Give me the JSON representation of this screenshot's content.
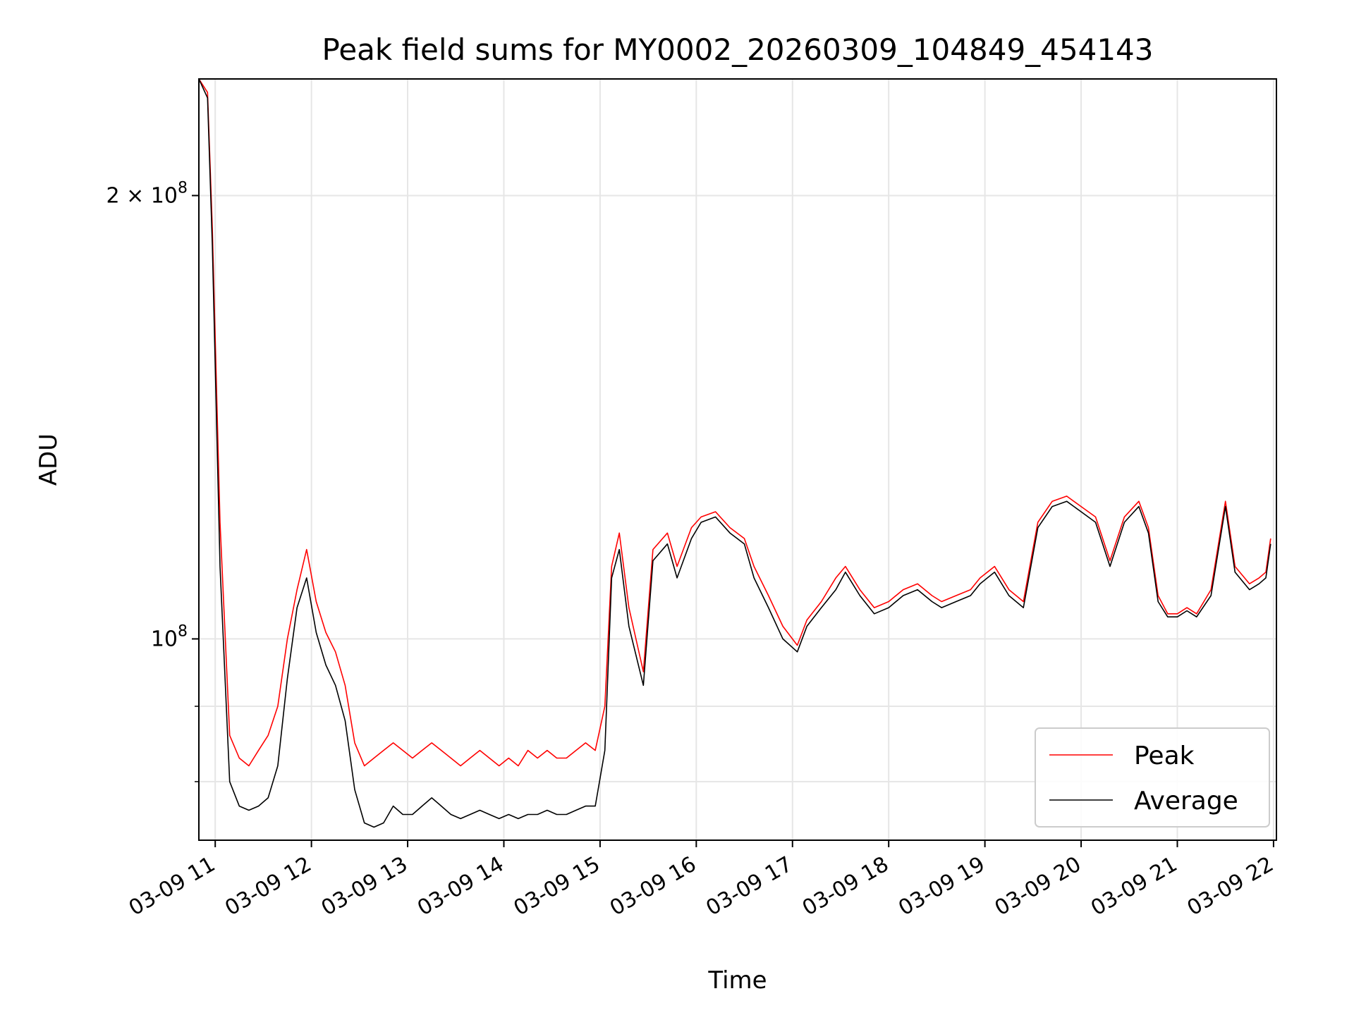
{
  "chart_data": {
    "type": "line",
    "title": "Peak field sums for MY0002_20260309_104849_454143",
    "xlabel": "Time",
    "ylabel": "ADU",
    "y_scale": "log",
    "x_range": [
      "03-09 10:49",
      "03-09 22:02"
    ],
    "ylim": [
      73000000,
      240000000
    ],
    "x_ticks": [
      "03-09 11",
      "03-09 12",
      "03-09 13",
      "03-09 14",
      "03-09 15",
      "03-09 16",
      "03-09 17",
      "03-09 18",
      "03-09 19",
      "03-09 20",
      "03-09 21",
      "03-09 22"
    ],
    "x_tick_hours": [
      11,
      12,
      13,
      14,
      15,
      16,
      17,
      18,
      19,
      20,
      21,
      22
    ],
    "y_major_ticks": [
      {
        "value": 100000000,
        "label_base": "10",
        "label_exp": "8"
      },
      {
        "value": 200000000,
        "label_base": "2 × 10",
        "label_exp": "8"
      }
    ],
    "y_minor_ticks": [
      80000000,
      90000000
    ],
    "grid": true,
    "legend_position": "lower-right",
    "series": [
      {
        "name": "Peak",
        "color": "#ff0000",
        "x_hours": [
          10.83,
          10.92,
          10.97,
          11.05,
          11.15,
          11.25,
          11.35,
          11.45,
          11.55,
          11.65,
          11.75,
          11.85,
          11.95,
          12.05,
          12.15,
          12.25,
          12.35,
          12.45,
          12.55,
          12.65,
          12.75,
          12.85,
          12.95,
          13.05,
          13.15,
          13.25,
          13.35,
          13.45,
          13.55,
          13.65,
          13.75,
          13.85,
          13.95,
          14.05,
          14.15,
          14.25,
          14.35,
          14.45,
          14.55,
          14.65,
          14.75,
          14.85,
          14.95,
          15.05,
          15.12,
          15.2,
          15.3,
          15.45,
          15.55,
          15.7,
          15.8,
          15.95,
          16.05,
          16.2,
          16.35,
          16.5,
          16.6,
          16.75,
          16.9,
          17.05,
          17.15,
          17.3,
          17.45,
          17.55,
          17.7,
          17.85,
          18.0,
          18.15,
          18.3,
          18.45,
          18.55,
          18.7,
          18.85,
          18.95,
          19.1,
          19.25,
          19.4,
          19.55,
          19.7,
          19.85,
          20.0,
          20.15,
          20.3,
          20.45,
          20.6,
          20.7,
          20.8,
          20.9,
          21.0,
          21.1,
          21.2,
          21.35,
          21.5,
          21.6,
          21.75,
          21.85,
          21.92,
          21.97
        ],
        "values": [
          240000000,
          235000000,
          190000000,
          120000000,
          86000000,
          83000000,
          82000000,
          84000000,
          86000000,
          90000000,
          100000000,
          108000000,
          115000000,
          106000000,
          101000000,
          98000000,
          93000000,
          85000000,
          82000000,
          83000000,
          84000000,
          85000000,
          84000000,
          83000000,
          84000000,
          85000000,
          84000000,
          83000000,
          82000000,
          83000000,
          84000000,
          83000000,
          82000000,
          83000000,
          82000000,
          84000000,
          83000000,
          84000000,
          83000000,
          83000000,
          84000000,
          85000000,
          84000000,
          90000000,
          112000000,
          118000000,
          105000000,
          95000000,
          115000000,
          118000000,
          112000000,
          119000000,
          121000000,
          122000000,
          119000000,
          117000000,
          112000000,
          107000000,
          102000000,
          99000000,
          103000000,
          106000000,
          110000000,
          112000000,
          108000000,
          105000000,
          106000000,
          108000000,
          109000000,
          107000000,
          106000000,
          107000000,
          108000000,
          110000000,
          112000000,
          108000000,
          106000000,
          120000000,
          124000000,
          125000000,
          123000000,
          121000000,
          113000000,
          121000000,
          124000000,
          119000000,
          107000000,
          104000000,
          104000000,
          105000000,
          104000000,
          108000000,
          124000000,
          112000000,
          109000000,
          110000000,
          111000000,
          117000000
        ]
      },
      {
        "name": "Average",
        "color": "#000000",
        "x_hours": [
          10.83,
          10.92,
          10.97,
          11.05,
          11.15,
          11.25,
          11.35,
          11.45,
          11.55,
          11.65,
          11.75,
          11.85,
          11.95,
          12.05,
          12.15,
          12.25,
          12.35,
          12.45,
          12.55,
          12.65,
          12.75,
          12.85,
          12.95,
          13.05,
          13.15,
          13.25,
          13.35,
          13.45,
          13.55,
          13.65,
          13.75,
          13.85,
          13.95,
          14.05,
          14.15,
          14.25,
          14.35,
          14.45,
          14.55,
          14.65,
          14.75,
          14.85,
          14.95,
          15.05,
          15.12,
          15.2,
          15.3,
          15.45,
          15.55,
          15.7,
          15.8,
          15.95,
          16.05,
          16.2,
          16.35,
          16.5,
          16.6,
          16.75,
          16.9,
          17.05,
          17.15,
          17.3,
          17.45,
          17.55,
          17.7,
          17.85,
          18.0,
          18.15,
          18.3,
          18.45,
          18.55,
          18.7,
          18.85,
          18.95,
          19.1,
          19.25,
          19.4,
          19.55,
          19.7,
          19.85,
          20.0,
          20.15,
          20.3,
          20.45,
          20.6,
          20.7,
          20.8,
          20.9,
          21.0,
          21.1,
          21.2,
          21.35,
          21.5,
          21.6,
          21.75,
          21.85,
          21.92,
          21.97
        ],
        "values": [
          240000000,
          233000000,
          185000000,
          112000000,
          80000000,
          77000000,
          76500000,
          77000000,
          78000000,
          82000000,
          94000000,
          105000000,
          110000000,
          101000000,
          96000000,
          93000000,
          88000000,
          79000000,
          75000000,
          74500000,
          75000000,
          77000000,
          76000000,
          76000000,
          77000000,
          78000000,
          77000000,
          76000000,
          75500000,
          76000000,
          76500000,
          76000000,
          75500000,
          76000000,
          75500000,
          76000000,
          76000000,
          76500000,
          76000000,
          76000000,
          76500000,
          77000000,
          77000000,
          84000000,
          110000000,
          115000000,
          102000000,
          93000000,
          113000000,
          116000000,
          110000000,
          117000000,
          120000000,
          121000000,
          118000000,
          116000000,
          110000000,
          105000000,
          100000000,
          98000000,
          102000000,
          105000000,
          108000000,
          111000000,
          107000000,
          104000000,
          105000000,
          107000000,
          108000000,
          106000000,
          105000000,
          106000000,
          107000000,
          109000000,
          111000000,
          107000000,
          105000000,
          119000000,
          123000000,
          124000000,
          122000000,
          120000000,
          112000000,
          120000000,
          123000000,
          118000000,
          106000000,
          103500000,
          103500000,
          104500000,
          103500000,
          107000000,
          123000000,
          111000000,
          108000000,
          109000000,
          110000000,
          116000000
        ]
      }
    ]
  }
}
